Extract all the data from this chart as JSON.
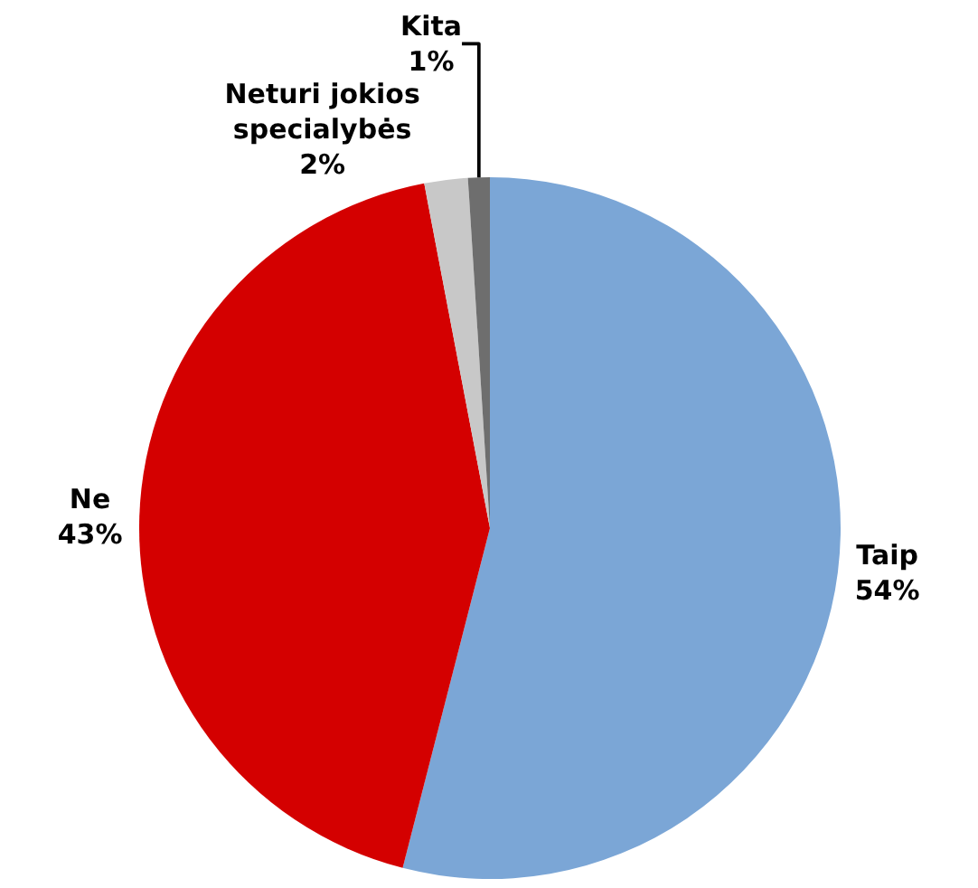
{
  "chart_data": {
    "type": "pie",
    "categories": [
      "Taip",
      "Ne",
      "Neturi jokios specialybės",
      "Kita"
    ],
    "values": [
      54,
      43,
      2,
      1
    ],
    "value_labels": [
      "54%",
      "43%",
      "2%",
      "1%"
    ],
    "colors": [
      "#7ba6d6",
      "#d40000",
      "#c8c8c8",
      "#6e6e6e"
    ],
    "legend": false
  }
}
